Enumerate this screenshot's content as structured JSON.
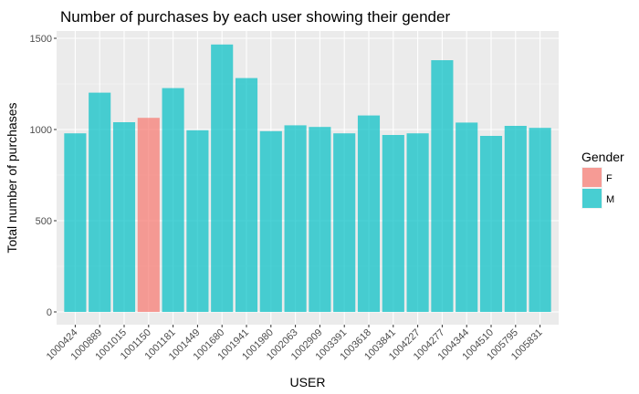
{
  "chart_data": {
    "type": "bar",
    "title": "Number of purchases by each user showing their gender",
    "xlabel": "USER",
    "ylabel": "Total number of purchases",
    "ylim": [
      0,
      1500
    ],
    "yticks": [
      0,
      500,
      1000,
      1500
    ],
    "grid": true,
    "legend_position": "right",
    "legend_title": "Gender",
    "legend": [
      {
        "label": "F",
        "color": "#F8766D"
      },
      {
        "label": "M",
        "color": "#00BFC4"
      }
    ],
    "categories": [
      "1000424",
      "1000889",
      "1001015",
      "1001150",
      "1001181",
      "1001449",
      "1001680",
      "1001941",
      "1001980",
      "1002063",
      "1002909",
      "1003391",
      "1003618",
      "1003841",
      "1004227",
      "1004277",
      "1004344",
      "1004510",
      "1005795",
      "1005831"
    ],
    "values": [
      979,
      1202,
      1040,
      1064,
      1227,
      996,
      1466,
      1282,
      991,
      1023,
      1014,
      979,
      1077,
      970,
      979,
      1380,
      1038,
      965,
      1020,
      1009
    ],
    "genders": [
      "M",
      "M",
      "M",
      "F",
      "M",
      "M",
      "M",
      "M",
      "M",
      "M",
      "M",
      "M",
      "M",
      "M",
      "M",
      "M",
      "M",
      "M",
      "M",
      "M"
    ]
  }
}
